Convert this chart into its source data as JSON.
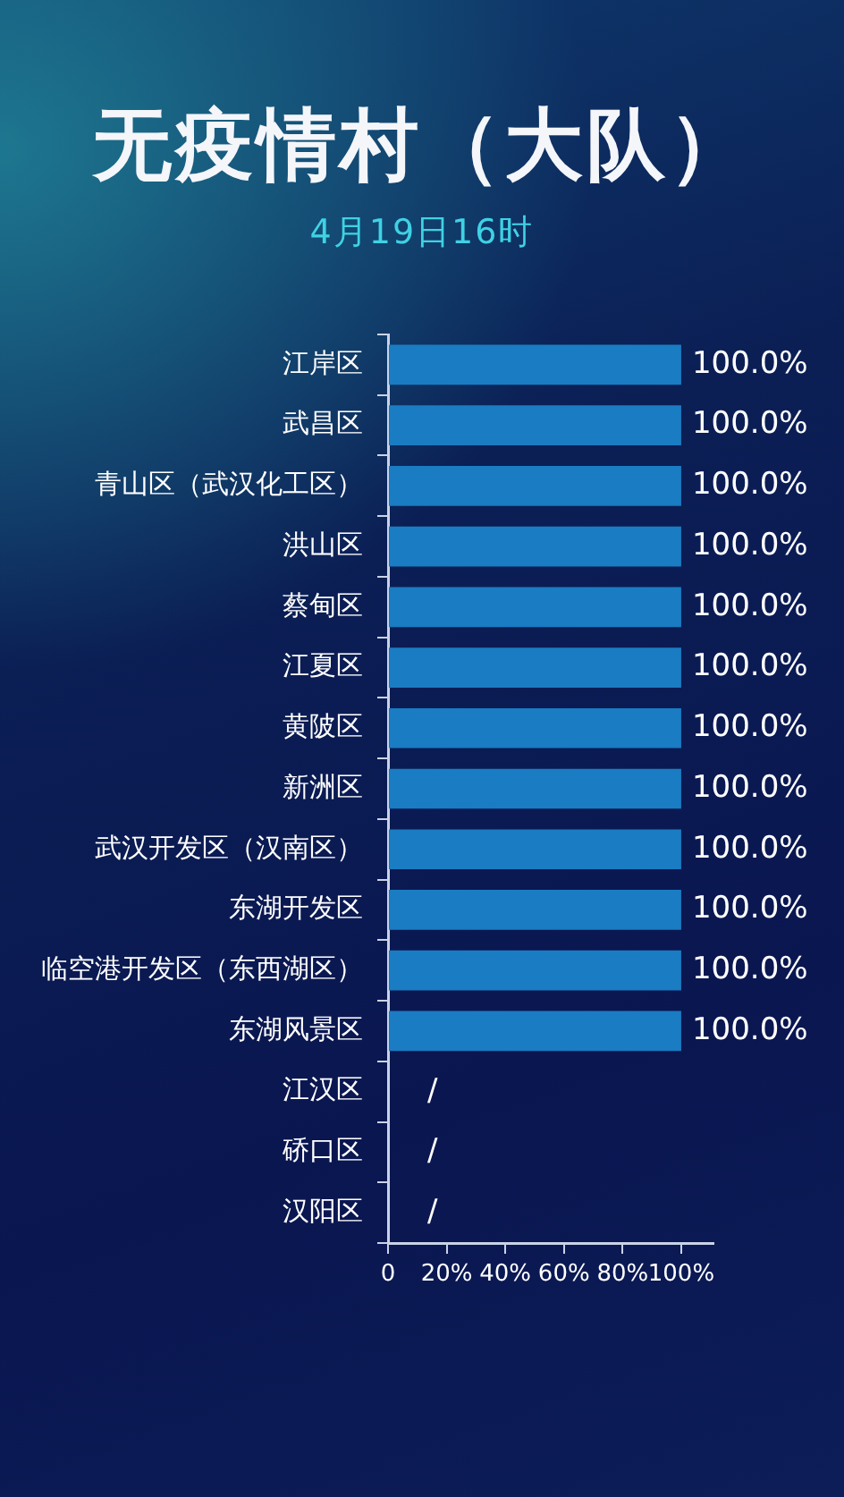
{
  "chart_data": {
    "type": "bar",
    "orientation": "horizontal",
    "title": "无疫情村（大队）",
    "subtitle": "4月19日16时",
    "categories": [
      "江岸区",
      "武昌区",
      "青山区（武汉化工区）",
      "洪山区",
      "蔡甸区",
      "江夏区",
      "黄陂区",
      "新洲区",
      "武汉开发区（汉南区）",
      "东湖开发区",
      "临空港开发区（东西湖区）",
      "东湖风景区",
      "江汉区",
      "硚口区",
      "汉阳区"
    ],
    "values": [
      100,
      100,
      100,
      100,
      100,
      100,
      100,
      100,
      100,
      100,
      100,
      100,
      null,
      null,
      null
    ],
    "value_labels": [
      "100.0%",
      "100.0%",
      "100.0%",
      "100.0%",
      "100.0%",
      "100.0%",
      "100.0%",
      "100.0%",
      "100.0%",
      "100.0%",
      "100.0%",
      "100.0%",
      "/",
      "/",
      "/"
    ],
    "color": "#1a7cc2",
    "xlim": [
      0,
      111
    ],
    "xticks": [
      0,
      {
        "value": 20,
        "label": "20%"
      },
      {
        "value": 40,
        "label": "40%"
      },
      {
        "value": 60,
        "label": "60%"
      },
      {
        "value": 80,
        "label": "80%"
      },
      {
        "value": 100,
        "label": "100%"
      }
    ]
  }
}
